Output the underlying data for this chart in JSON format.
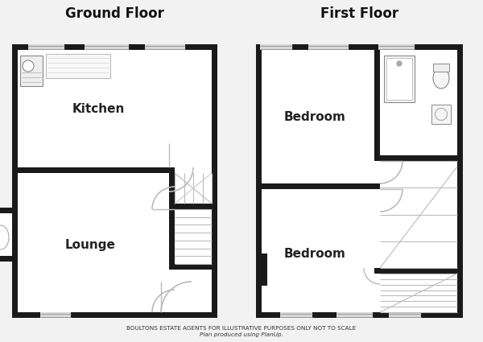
{
  "title_left": "Ground Floor",
  "title_right": "First Floor",
  "footer_line1": "BOULTONS ESTATE AGENTS FOR ILLUSTRATIVE PURPOSES ONLY NOT TO SCALE",
  "footer_line2": "Plan produced using PlanUp.",
  "bg_color": "#f2f2f2",
  "wall_color": "#1a1a1a",
  "room_fill": "#ffffff",
  "door_color": "#bbbbbb",
  "fixture_color": "#cccccc",
  "stair_color": "#bbbbbb"
}
